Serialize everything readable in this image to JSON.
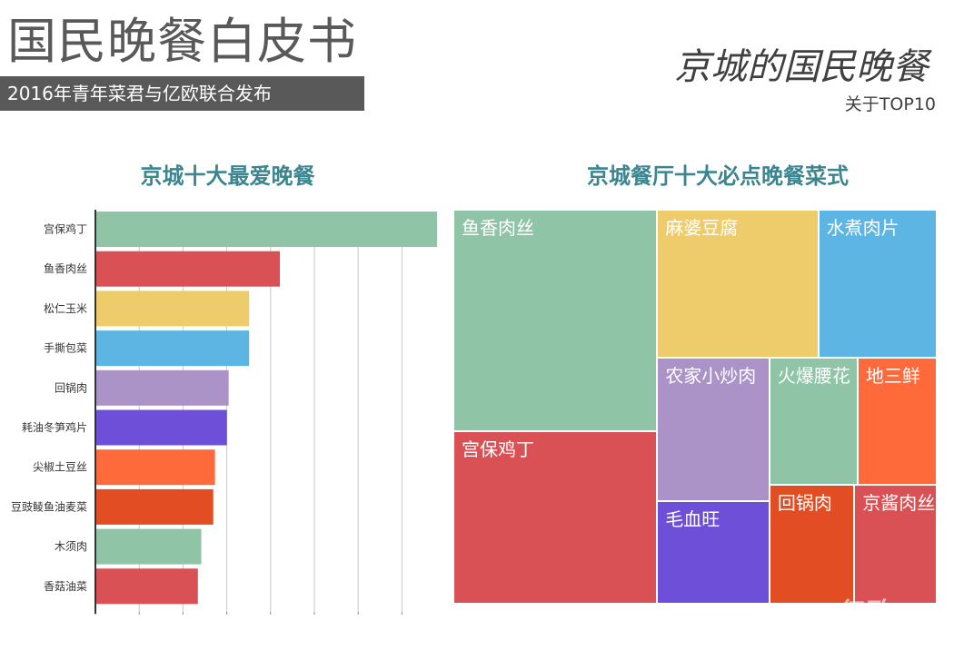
{
  "header": {
    "title": "国民晚餐白皮书",
    "subtitle": "2016年青年菜君与亿欧联合发布",
    "section_title": "京城的国民晚餐",
    "section_sub": "关于TOP10"
  },
  "watermark": "亿欧",
  "chart_data": [
    {
      "type": "bar",
      "orientation": "horizontal",
      "title": "京城十大最爱晚餐",
      "categories": [
        "宫保鸡丁",
        "鱼香肉丝",
        "松仁玉米",
        "手撕包菜",
        "回锅肉",
        "耗油冬笋鸡片",
        "尖椒土豆丝",
        "豆豉鲮鱼油麦菜",
        "木须肉",
        "香菇油菜"
      ],
      "values": [
        100,
        54,
        45,
        45,
        39,
        38.5,
        35,
        34.5,
        31,
        30
      ],
      "colors": [
        "#8fc4a7",
        "#d95155",
        "#eecb6b",
        "#5db5e3",
        "#ab92c7",
        "#6e4fd8",
        "#ff6a3a",
        "#e34d24",
        "#8fc4a7",
        "#d95155"
      ],
      "xlim": [
        0,
        100
      ],
      "grid": true
    },
    {
      "type": "treemap",
      "title": "京城餐厅十大必点晚餐菜式",
      "items": [
        {
          "name": "鱼香肉丝",
          "value": 15.7,
          "color": "#8fc4a7"
        },
        {
          "name": "宫保鸡丁",
          "value": 12.2,
          "color": "#d95155"
        },
        {
          "name": "麻婆豆腐",
          "value": 8.3,
          "color": "#eecb6b"
        },
        {
          "name": "水煮肉片",
          "value": 6.1,
          "color": "#5db5e3"
        },
        {
          "name": "农家小炒肉",
          "value": 5.6,
          "color": "#ab92c7"
        },
        {
          "name": "毛血旺",
          "value": 4.0,
          "color": "#6e4fd8"
        },
        {
          "name": "火爆腰花",
          "value": 3.9,
          "color": "#8fc4a7"
        },
        {
          "name": "地三鲜",
          "value": 3.5,
          "color": "#ff6a3a"
        },
        {
          "name": "回锅肉",
          "value": 3.5,
          "color": "#e34d24"
        },
        {
          "name": "京酱肉丝",
          "value": 3.4,
          "color": "#d95155"
        }
      ]
    }
  ]
}
